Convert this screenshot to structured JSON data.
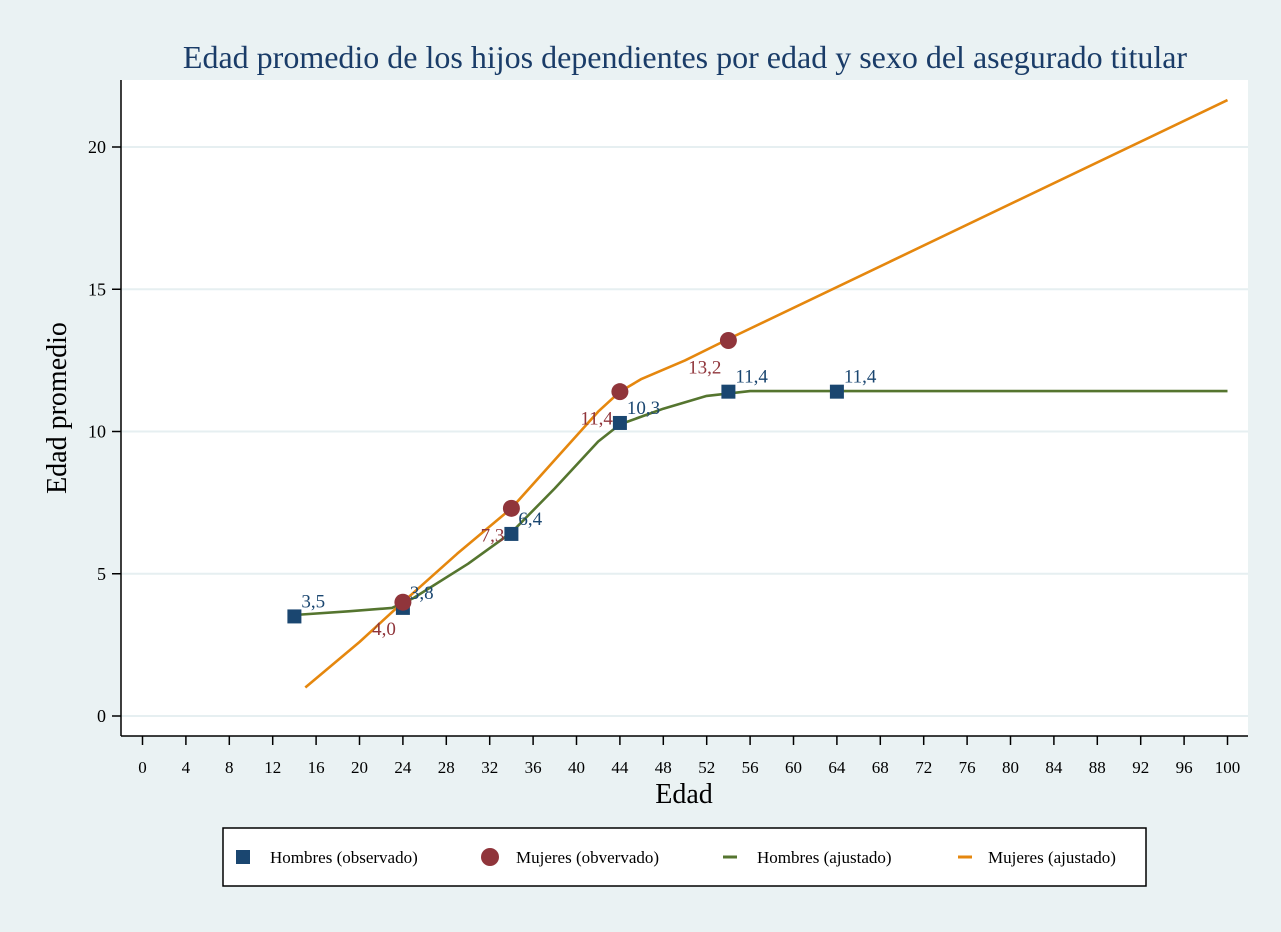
{
  "chart_data": {
    "type": "line",
    "title": "Edad promedio de los hijos dependientes por edad y sexo del asegurado titular",
    "xlabel": "Edad",
    "ylabel": "Edad promedio",
    "xlim": [
      0,
      100
    ],
    "ylim": [
      0,
      22
    ],
    "x_ticks": [
      0,
      4,
      8,
      12,
      16,
      20,
      24,
      28,
      32,
      36,
      40,
      44,
      48,
      52,
      56,
      60,
      64,
      68,
      72,
      76,
      80,
      84,
      88,
      92,
      96,
      100
    ],
    "y_ticks": [
      0,
      5,
      10,
      15,
      20
    ],
    "x_tick_labels": [
      "0",
      "4",
      "8",
      "12",
      "16",
      "20",
      "24",
      "28",
      "32",
      "36",
      "40",
      "44",
      "48",
      "52",
      "56",
      "60",
      "64",
      "68",
      "72",
      "76",
      "80",
      "84",
      "88",
      "92",
      "96",
      "100"
    ],
    "y_tick_labels": [
      "0",
      "5",
      "10",
      "15",
      "20"
    ],
    "grid": true,
    "legend_position": "bottom",
    "colors": {
      "hombres_obs": "#1a4670",
      "mujeres_obs": "#90353b",
      "hombres_fit": "#55752f",
      "mujeres_fit": "#e5870e",
      "title": "#1a3c68",
      "background": "#eaf2f3",
      "plot": "#ffffff",
      "grid": "#e6eff1"
    },
    "series": [
      {
        "name": "Hombres (observado)",
        "kind": "scatter",
        "marker": "square",
        "x": [
          14,
          24,
          34,
          44,
          54,
          64
        ],
        "y": [
          3.5,
          3.8,
          6.4,
          10.3,
          11.4,
          11.4
        ],
        "labels": [
          "3,5",
          "3,8",
          "6,4",
          "10,3",
          "11,4",
          "11,4"
        ]
      },
      {
        "name": "Mujeres (obvervado)",
        "kind": "scatter",
        "marker": "circle",
        "x": [
          24,
          34,
          44,
          54
        ],
        "y": [
          4.0,
          7.3,
          11.4,
          13.2
        ],
        "labels": [
          "4,0",
          "7,3",
          "11,4",
          "13,2"
        ]
      },
      {
        "name": "Hombres (ajustado)",
        "kind": "line",
        "x": [
          14,
          19,
          23,
          25,
          30,
          34,
          38,
          42,
          44,
          48,
          52,
          56,
          64,
          100
        ],
        "y": [
          3.55,
          3.68,
          3.8,
          4.15,
          5.35,
          6.45,
          8.0,
          9.65,
          10.25,
          10.8,
          11.25,
          11.42,
          11.42,
          11.42
        ]
      },
      {
        "name": "Mujeres (ajustado)",
        "kind": "line",
        "x": [
          15,
          20,
          24,
          29,
          34,
          38,
          42,
          44,
          46,
          50,
          54,
          100
        ],
        "y": [
          1.0,
          2.6,
          4.0,
          5.7,
          7.3,
          9.0,
          10.7,
          11.4,
          11.85,
          12.5,
          13.25,
          21.65
        ]
      }
    ]
  }
}
